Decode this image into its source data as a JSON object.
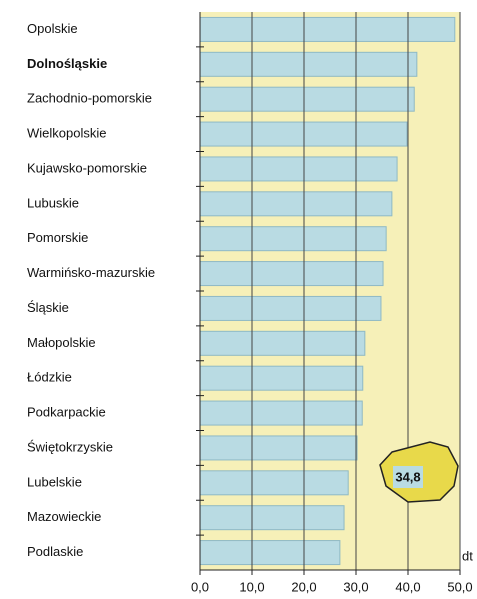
{
  "chart_data": {
    "type": "bar",
    "orientation": "horizontal",
    "categories": [
      "Opolskie",
      "Dolnośląskie",
      "Zachodnio-pomorskie",
      "Wielkopolskie",
      "Kujawsko-pomorskie",
      "Lubuskie",
      "Pomorskie",
      "Warmińsko-mazurskie",
      "Śląskie",
      "Małopolskie",
      "Łódzkie",
      "Podkarpackie",
      "Świętokrzyskie",
      "Lubelskie",
      "Mazowieckie",
      "Podlaskie"
    ],
    "values": [
      49.0,
      41.7,
      41.2,
      39.8,
      37.9,
      36.9,
      35.8,
      35.2,
      34.8,
      31.7,
      31.3,
      31.2,
      30.2,
      28.5,
      27.7,
      26.9
    ],
    "highlight_index": 1,
    "color": "#b9dbe3",
    "xlim": [
      0,
      50
    ],
    "xticks": [
      {
        "value": 0,
        "label": "0,0"
      },
      {
        "value": 10,
        "label": "10,0"
      },
      {
        "value": 20,
        "label": "20,0"
      },
      {
        "value": 30,
        "label": "30,0"
      },
      {
        "value": 40,
        "label": "40,0"
      },
      {
        "value": 50,
        "label": "50,0"
      }
    ],
    "x_label": "dt",
    "annotation": {
      "value": 34.8,
      "label": "34,8"
    },
    "grid": true
  }
}
